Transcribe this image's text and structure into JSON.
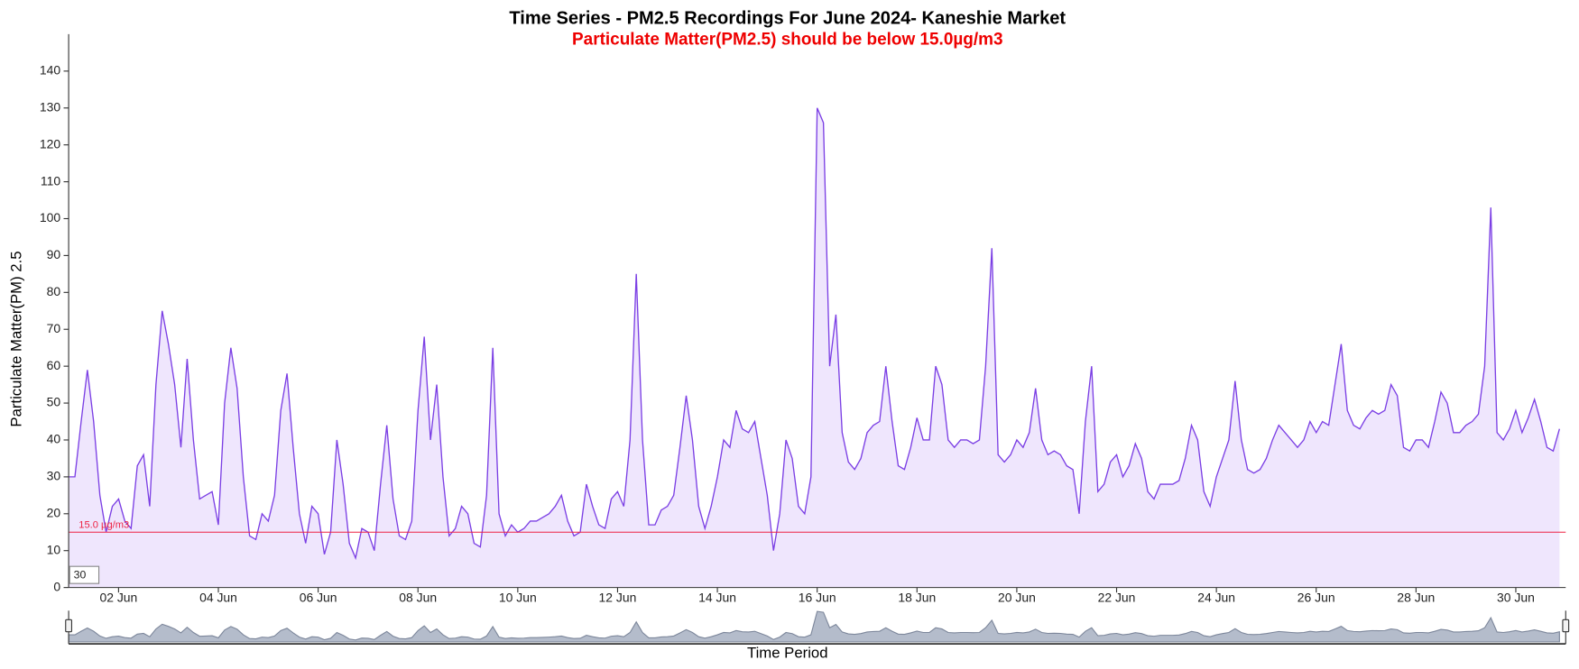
{
  "chart_data": {
    "type": "area",
    "title": "Time Series - PM2.5 Recordings For June 2024- Kaneshie Market",
    "subtitle": "Particulate Matter(PM2.5) should be below 15.0µg/m3",
    "x_label": "Time Period",
    "y_label": "Particulate Matter(PM) 2.5",
    "range_input": "30",
    "threshold": {
      "value": 15,
      "label": "15.0 µg/m3",
      "color": "#ee2244"
    },
    "line_color": "#7b3fe4",
    "fill_color": "#efe6fd",
    "navigator_color": "#b4bccb",
    "xlim": [
      "2024-06-01T00:00",
      "2024-07-01T00:00"
    ],
    "xticks": [
      {
        "value": "2024-06-02T00:00",
        "label": "02 Jun"
      },
      {
        "value": "2024-06-04T00:00",
        "label": "04 Jun"
      },
      {
        "value": "2024-06-06T00:00",
        "label": "06 Jun"
      },
      {
        "value": "2024-06-08T00:00",
        "label": "08 Jun"
      },
      {
        "value": "2024-06-10T00:00",
        "label": "10 Jun"
      },
      {
        "value": "2024-06-12T00:00",
        "label": "12 Jun"
      },
      {
        "value": "2024-06-14T00:00",
        "label": "14 Jun"
      },
      {
        "value": "2024-06-16T00:00",
        "label": "16 Jun"
      },
      {
        "value": "2024-06-18T00:00",
        "label": "18 Jun"
      },
      {
        "value": "2024-06-20T00:00",
        "label": "20 Jun"
      },
      {
        "value": "2024-06-22T00:00",
        "label": "22 Jun"
      },
      {
        "value": "2024-06-24T00:00",
        "label": "24 Jun"
      },
      {
        "value": "2024-06-26T00:00",
        "label": "26 Jun"
      },
      {
        "value": "2024-06-28T00:00",
        "label": "28 Jun"
      },
      {
        "value": "2024-06-30T00:00",
        "label": "30 Jun"
      }
    ],
    "ylim": [
      0,
      150
    ],
    "yticks": [
      0,
      10,
      20,
      30,
      40,
      50,
      60,
      70,
      80,
      90,
      100,
      110,
      120,
      130,
      140
    ],
    "x": [
      "2024-06-01T00:00",
      "2024-06-01T03:00",
      "2024-06-01T06:00",
      "2024-06-01T09:00",
      "2024-06-01T12:00",
      "2024-06-01T15:00",
      "2024-06-01T18:00",
      "2024-06-01T21:00",
      "2024-06-02T00:00",
      "2024-06-02T03:00",
      "2024-06-02T06:00",
      "2024-06-02T09:00",
      "2024-06-02T12:00",
      "2024-06-02T15:00",
      "2024-06-02T18:00",
      "2024-06-02T21:00",
      "2024-06-03T00:00",
      "2024-06-03T03:00",
      "2024-06-03T06:00",
      "2024-06-03T09:00",
      "2024-06-03T12:00",
      "2024-06-03T15:00",
      "2024-06-03T18:00",
      "2024-06-03T21:00",
      "2024-06-04T00:00",
      "2024-06-04T03:00",
      "2024-06-04T06:00",
      "2024-06-04T09:00",
      "2024-06-04T12:00",
      "2024-06-04T15:00",
      "2024-06-04T18:00",
      "2024-06-04T21:00",
      "2024-06-05T00:00",
      "2024-06-05T03:00",
      "2024-06-05T06:00",
      "2024-06-05T09:00",
      "2024-06-05T12:00",
      "2024-06-05T15:00",
      "2024-06-05T18:00",
      "2024-06-05T21:00",
      "2024-06-06T00:00",
      "2024-06-06T03:00",
      "2024-06-06T06:00",
      "2024-06-06T09:00",
      "2024-06-06T12:00",
      "2024-06-06T15:00",
      "2024-06-06T18:00",
      "2024-06-06T21:00",
      "2024-06-07T00:00",
      "2024-06-07T03:00",
      "2024-06-07T06:00",
      "2024-06-07T09:00",
      "2024-06-07T12:00",
      "2024-06-07T15:00",
      "2024-06-07T18:00",
      "2024-06-07T21:00",
      "2024-06-08T00:00",
      "2024-06-08T03:00",
      "2024-06-08T06:00",
      "2024-06-08T09:00",
      "2024-06-08T12:00",
      "2024-06-08T15:00",
      "2024-06-08T18:00",
      "2024-06-08T21:00",
      "2024-06-09T00:00",
      "2024-06-09T03:00",
      "2024-06-09T06:00",
      "2024-06-09T09:00",
      "2024-06-09T12:00",
      "2024-06-09T15:00",
      "2024-06-09T18:00",
      "2024-06-09T21:00",
      "2024-06-10T00:00",
      "2024-06-10T03:00",
      "2024-06-10T06:00",
      "2024-06-10T09:00",
      "2024-06-10T12:00",
      "2024-06-10T15:00",
      "2024-06-10T18:00",
      "2024-06-10T21:00",
      "2024-06-11T00:00",
      "2024-06-11T03:00",
      "2024-06-11T06:00",
      "2024-06-11T09:00",
      "2024-06-11T12:00",
      "2024-06-11T15:00",
      "2024-06-11T18:00",
      "2024-06-11T21:00",
      "2024-06-12T00:00",
      "2024-06-12T03:00",
      "2024-06-12T06:00",
      "2024-06-12T09:00",
      "2024-06-12T12:00",
      "2024-06-12T15:00",
      "2024-06-12T18:00",
      "2024-06-12T21:00",
      "2024-06-13T00:00",
      "2024-06-13T03:00",
      "2024-06-13T06:00",
      "2024-06-13T09:00",
      "2024-06-13T12:00",
      "2024-06-13T15:00",
      "2024-06-13T18:00",
      "2024-06-13T21:00",
      "2024-06-14T00:00",
      "2024-06-14T03:00",
      "2024-06-14T06:00",
      "2024-06-14T09:00",
      "2024-06-14T12:00",
      "2024-06-14T15:00",
      "2024-06-14T18:00",
      "2024-06-14T21:00",
      "2024-06-15T00:00",
      "2024-06-15T03:00",
      "2024-06-15T06:00",
      "2024-06-15T09:00",
      "2024-06-15T12:00",
      "2024-06-15T15:00",
      "2024-06-15T18:00",
      "2024-06-15T21:00",
      "2024-06-16T00:00",
      "2024-06-16T03:00",
      "2024-06-16T06:00",
      "2024-06-16T09:00",
      "2024-06-16T12:00",
      "2024-06-16T15:00",
      "2024-06-16T18:00",
      "2024-06-16T21:00",
      "2024-06-17T00:00",
      "2024-06-17T03:00",
      "2024-06-17T06:00",
      "2024-06-17T09:00",
      "2024-06-17T12:00",
      "2024-06-17T15:00",
      "2024-06-17T18:00",
      "2024-06-17T21:00",
      "2024-06-18T00:00",
      "2024-06-18T03:00",
      "2024-06-18T06:00",
      "2024-06-18T09:00",
      "2024-06-18T12:00",
      "2024-06-18T15:00",
      "2024-06-18T18:00",
      "2024-06-18T21:00",
      "2024-06-19T00:00",
      "2024-06-19T03:00",
      "2024-06-19T06:00",
      "2024-06-19T09:00",
      "2024-06-19T12:00",
      "2024-06-19T15:00",
      "2024-06-19T18:00",
      "2024-06-19T21:00",
      "2024-06-20T00:00",
      "2024-06-20T03:00",
      "2024-06-20T06:00",
      "2024-06-20T09:00",
      "2024-06-20T12:00",
      "2024-06-20T15:00",
      "2024-06-20T18:00",
      "2024-06-20T21:00",
      "2024-06-21T00:00",
      "2024-06-21T03:00",
      "2024-06-21T06:00",
      "2024-06-21T09:00",
      "2024-06-21T12:00",
      "2024-06-21T15:00",
      "2024-06-21T18:00",
      "2024-06-21T21:00",
      "2024-06-22T00:00",
      "2024-06-22T03:00",
      "2024-06-22T06:00",
      "2024-06-22T09:00",
      "2024-06-22T12:00",
      "2024-06-22T15:00",
      "2024-06-22T18:00",
      "2024-06-22T21:00",
      "2024-06-23T00:00",
      "2024-06-23T03:00",
      "2024-06-23T06:00",
      "2024-06-23T09:00",
      "2024-06-23T12:00",
      "2024-06-23T15:00",
      "2024-06-23T18:00",
      "2024-06-23T21:00",
      "2024-06-24T00:00",
      "2024-06-24T03:00",
      "2024-06-24T06:00",
      "2024-06-24T09:00",
      "2024-06-24T12:00",
      "2024-06-24T15:00",
      "2024-06-24T18:00",
      "2024-06-24T21:00",
      "2024-06-25T00:00",
      "2024-06-25T03:00",
      "2024-06-25T06:00",
      "2024-06-25T09:00",
      "2024-06-25T12:00",
      "2024-06-25T15:00",
      "2024-06-25T18:00",
      "2024-06-25T21:00",
      "2024-06-26T00:00",
      "2024-06-26T03:00",
      "2024-06-26T06:00",
      "2024-06-26T09:00",
      "2024-06-26T12:00",
      "2024-06-26T15:00",
      "2024-06-26T18:00",
      "2024-06-26T21:00",
      "2024-06-27T00:00",
      "2024-06-27T03:00",
      "2024-06-27T06:00",
      "2024-06-27T09:00",
      "2024-06-27T12:00",
      "2024-06-27T15:00",
      "2024-06-27T18:00",
      "2024-06-27T21:00",
      "2024-06-28T00:00",
      "2024-06-28T03:00",
      "2024-06-28T06:00",
      "2024-06-28T09:00",
      "2024-06-28T12:00",
      "2024-06-28T15:00",
      "2024-06-28T18:00",
      "2024-06-28T21:00",
      "2024-06-29T00:00",
      "2024-06-29T03:00",
      "2024-06-29T06:00",
      "2024-06-29T09:00",
      "2024-06-29T12:00",
      "2024-06-29T15:00",
      "2024-06-29T18:00",
      "2024-06-29T21:00",
      "2024-06-30T00:00",
      "2024-06-30T03:00",
      "2024-06-30T06:00",
      "2024-06-30T09:00",
      "2024-06-30T12:00",
      "2024-06-30T15:00",
      "2024-06-30T18:00",
      "2024-06-30T21:00"
    ],
    "values": [
      30,
      30,
      45,
      59,
      45,
      25,
      15,
      22,
      24,
      18,
      16,
      33,
      36,
      22,
      55,
      75,
      66,
      55,
      38,
      62,
      40,
      24,
      25,
      26,
      17,
      50,
      65,
      54,
      30,
      14,
      13,
      20,
      18,
      25,
      48,
      58,
      38,
      20,
      12,
      22,
      20,
      9,
      15,
      40,
      28,
      12,
      8,
      16,
      15,
      10,
      28,
      44,
      24,
      14,
      13,
      18,
      48,
      68,
      40,
      55,
      30,
      14,
      16,
      22,
      20,
      12,
      11,
      25,
      65,
      20,
      14,
      17,
      15,
      16,
      18,
      18,
      19,
      20,
      22,
      25,
      18,
      14,
      15,
      28,
      22,
      17,
      16,
      24,
      26,
      22,
      40,
      85,
      40,
      17,
      17,
      21,
      22,
      25,
      38,
      52,
      40,
      22,
      16,
      22,
      30,
      40,
      38,
      48,
      43,
      42,
      45,
      35,
      25,
      10,
      20,
      40,
      35,
      22,
      20,
      30,
      130,
      126,
      60,
      74,
      42,
      34,
      32,
      35,
      42,
      44,
      45,
      60,
      45,
      33,
      32,
      38,
      46,
      40,
      40,
      60,
      55,
      40,
      38,
      40,
      40,
      39,
      40,
      60,
      92,
      36,
      34,
      36,
      40,
      38,
      42,
      54,
      40,
      36,
      37,
      36,
      33,
      32,
      20,
      45,
      60,
      26,
      28,
      34,
      36,
      30,
      33,
      39,
      35,
      26,
      24,
      28,
      28,
      28,
      29,
      35,
      44,
      40,
      26,
      22,
      30,
      35,
      40,
      56,
      40,
      32,
      31,
      32,
      35,
      40,
      44,
      42,
      40,
      38,
      40,
      45,
      42,
      45,
      44,
      55,
      66,
      48,
      44,
      43,
      46,
      48,
      47,
      48,
      55,
      52,
      38,
      37,
      40,
      40,
      38,
      45,
      53,
      50,
      42,
      42,
      44,
      45,
      47,
      60,
      103,
      42,
      40,
      43,
      48,
      42,
      46,
      51,
      45,
      38,
      37,
      43
    ]
  }
}
